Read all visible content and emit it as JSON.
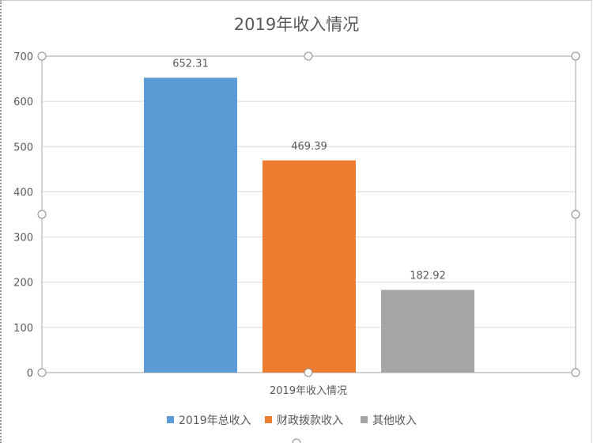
{
  "chart_data": {
    "type": "bar",
    "title": "2019年收入情况",
    "categories": [
      "2019年收入情况"
    ],
    "series": [
      {
        "name": "2019年总收入",
        "values": [
          652.31
        ],
        "color": "#5b9bd5"
      },
      {
        "name": "财政拨款收入",
        "values": [
          469.39
        ],
        "color": "#ed7d31"
      },
      {
        "name": "其他收入",
        "values": [
          182.92
        ],
        "color": "#a5a5a5"
      }
    ],
    "data_labels": [
      "652.31",
      "469.39",
      "182.92"
    ],
    "ylim": [
      0,
      700
    ],
    "yticks": [
      "0",
      "100",
      "200",
      "300",
      "400",
      "500",
      "600",
      "700"
    ],
    "grid": true,
    "legend": "bottom",
    "selected": true
  }
}
